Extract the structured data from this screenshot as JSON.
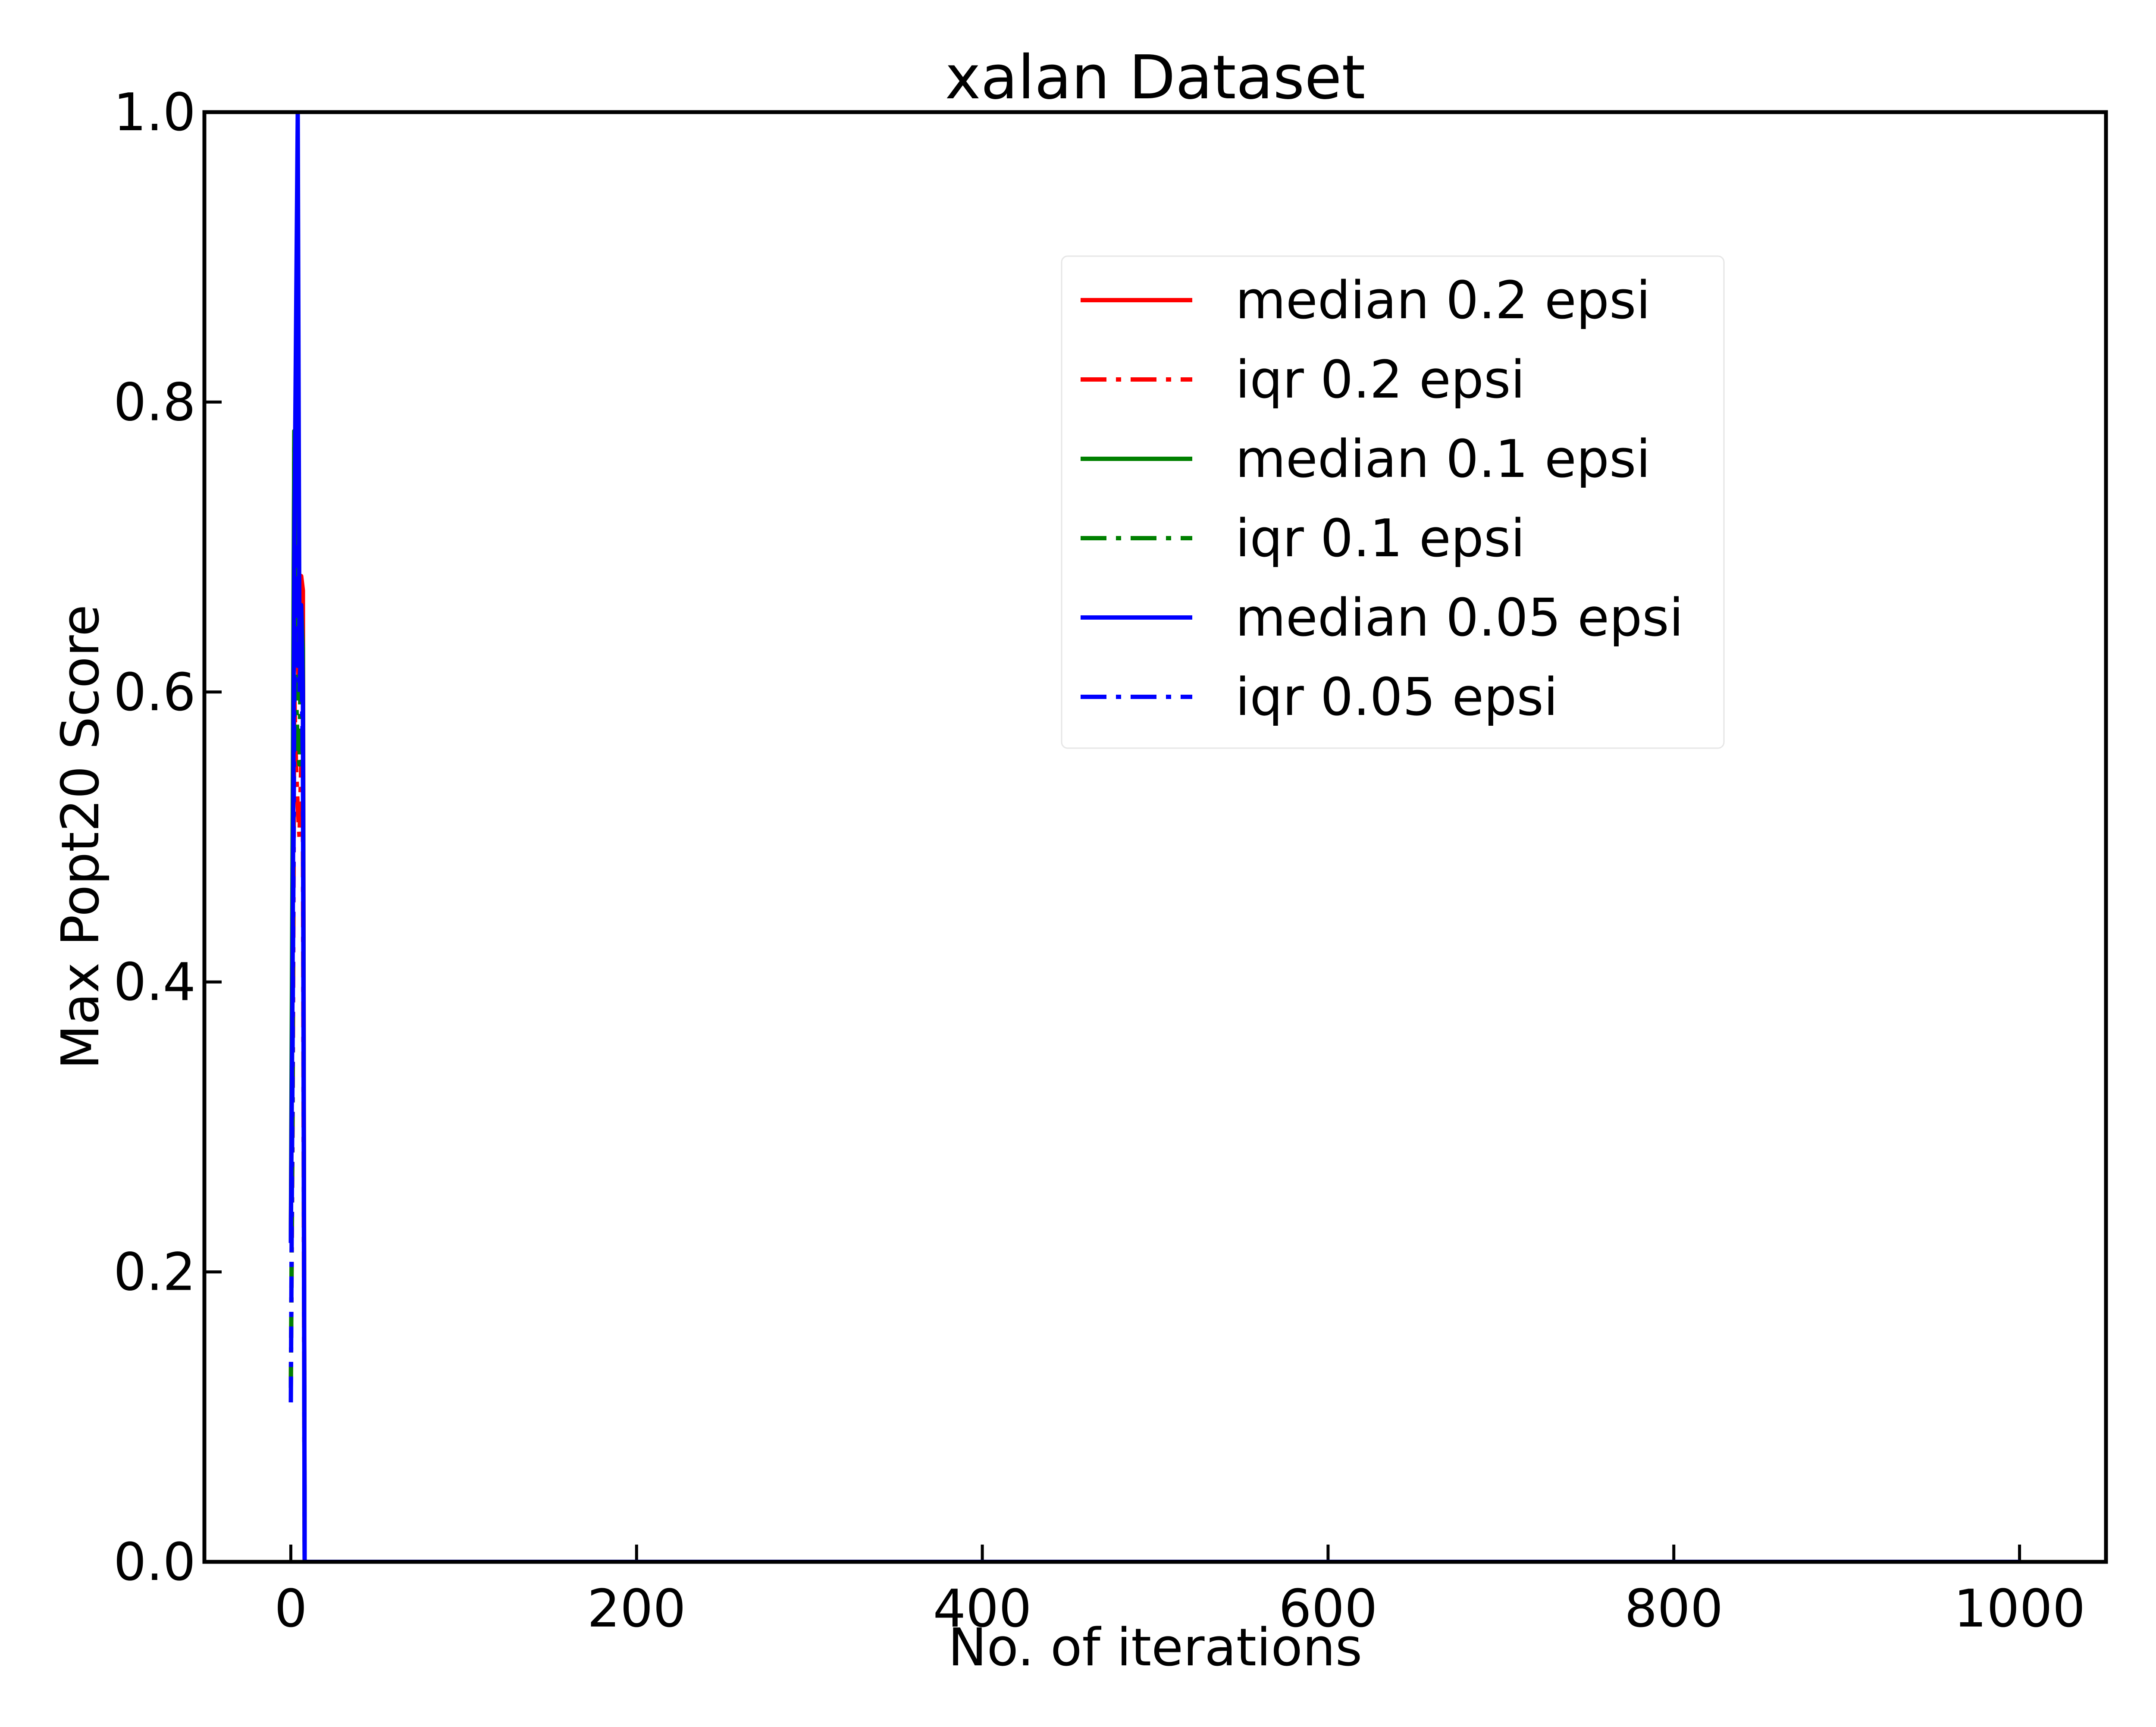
{
  "chart_data": {
    "type": "line",
    "title": "xalan Dataset",
    "xlabel": "No. of iterations",
    "ylabel": "Max Popt20 Score",
    "xlim": [
      -50,
      1050
    ],
    "ylim": [
      0,
      1.0
    ],
    "x_ticks": [
      0,
      200,
      400,
      600,
      800,
      1000
    ],
    "y_ticks": [
      0.0,
      0.2,
      0.4,
      0.6,
      0.8,
      1.0
    ],
    "x_tick_labels": [
      "0",
      "200",
      "400",
      "600",
      "800",
      "1000"
    ],
    "y_tick_labels": [
      "0.0",
      "0.2",
      "0.4",
      "0.6",
      "0.8",
      "1.0"
    ],
    "grid": false,
    "legend_position": "upper-right",
    "series": [
      {
        "name": "median 0.2 epsi",
        "color": "#ff0000",
        "style": "solid",
        "points": [
          [
            0,
            0.22
          ],
          [
            1,
            0.45
          ],
          [
            2,
            0.78
          ],
          [
            3,
            0.65
          ],
          [
            4,
            0.62
          ],
          [
            5,
            0.6
          ],
          [
            6,
            0.68
          ],
          [
            7,
            0.67
          ],
          [
            8,
            0.0
          ],
          [
            1000,
            0.0
          ]
        ]
      },
      {
        "name": "iqr 0.2 epsi",
        "color": "#ff0000",
        "style": "dashdot",
        "points": [
          [
            0,
            0.12
          ],
          [
            1,
            0.3
          ],
          [
            2,
            0.6
          ],
          [
            3,
            0.55
          ],
          [
            4,
            0.52
          ],
          [
            5,
            0.5
          ],
          [
            6,
            0.55
          ],
          [
            7,
            0.5
          ],
          [
            8,
            0.0
          ],
          [
            1000,
            0.0
          ]
        ]
      },
      {
        "name": "median 0.1 epsi",
        "color": "#008000",
        "style": "solid",
        "points": [
          [
            0,
            0.22
          ],
          [
            1,
            0.5
          ],
          [
            2,
            0.78
          ],
          [
            3,
            0.66
          ],
          [
            4,
            0.64
          ],
          [
            5,
            0.62
          ],
          [
            6,
            0.66
          ],
          [
            7,
            0.63
          ],
          [
            8,
            0.0
          ],
          [
            1000,
            0.0
          ]
        ]
      },
      {
        "name": "iqr 0.1 epsi",
        "color": "#008000",
        "style": "dashdot",
        "points": [
          [
            0,
            0.12
          ],
          [
            1,
            0.32
          ],
          [
            2,
            0.78
          ],
          [
            3,
            0.6
          ],
          [
            4,
            0.56
          ],
          [
            5,
            0.55
          ],
          [
            6,
            0.65
          ],
          [
            7,
            0.6
          ],
          [
            8,
            0.0
          ],
          [
            1000,
            0.0
          ]
        ]
      },
      {
        "name": "median 0.05 epsi",
        "color": "#0000ff",
        "style": "solid",
        "points": [
          [
            0,
            0.22
          ],
          [
            1,
            0.4
          ],
          [
            2,
            0.7
          ],
          [
            3,
            0.85
          ],
          [
            4,
            1.0
          ],
          [
            5,
            0.62
          ],
          [
            6,
            0.66
          ],
          [
            7,
            0.6
          ],
          [
            8,
            0.0
          ],
          [
            1000,
            0.0
          ]
        ]
      },
      {
        "name": "iqr 0.05 epsi",
        "color": "#0000ff",
        "style": "dashdot",
        "points": [
          [
            0,
            0.11
          ],
          [
            1,
            0.35
          ],
          [
            2,
            0.6
          ],
          [
            3,
            0.7
          ],
          [
            4,
            0.63
          ],
          [
            5,
            0.6
          ],
          [
            6,
            0.64
          ],
          [
            7,
            0.55
          ],
          [
            8,
            0.0
          ],
          [
            1000,
            0.0
          ]
        ]
      }
    ]
  }
}
